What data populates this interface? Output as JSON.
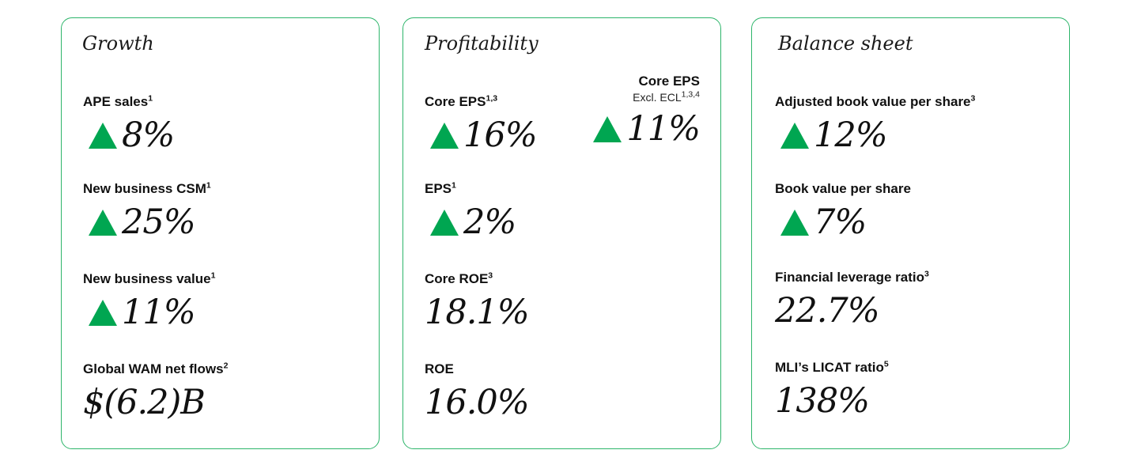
{
  "growth": {
    "title": "Growth",
    "metrics": [
      {
        "label": "APE sales",
        "sup": "1",
        "value": "8%",
        "trend": "up"
      },
      {
        "label": "New business CSM",
        "sup": "1",
        "value": "25%",
        "trend": "up"
      },
      {
        "label": "New business value",
        "sup": "1",
        "value": "11%",
        "trend": "up"
      },
      {
        "label": "Global WAM net flows",
        "sup": "2",
        "value": "$(6.2)B",
        "trend": "none"
      }
    ]
  },
  "profitability": {
    "title": "Profitability",
    "metrics": [
      {
        "label": "Core EPS",
        "sup": "1,3",
        "value": "16%",
        "trend": "up"
      },
      {
        "label": "EPS",
        "sup": "1",
        "value": "2%",
        "trend": "up"
      },
      {
        "label": "Core ROE",
        "sup": "3",
        "value": "18.1%",
        "trend": "none"
      },
      {
        "label": "ROE",
        "sup": "",
        "value": "16.0%",
        "trend": "none"
      }
    ],
    "side_metric": {
      "label": "Core EPS",
      "sub_label": "Excl. ECL",
      "sup": "1,3,4",
      "value": "11%",
      "trend": "up"
    }
  },
  "balance": {
    "title": "Balance sheet",
    "metrics": [
      {
        "label": "Adjusted book value per share",
        "sup": "3",
        "value": "12%",
        "trend": "up"
      },
      {
        "label": "Book value per share",
        "sup": "",
        "value": "7%",
        "trend": "up"
      },
      {
        "label": "Financial leverage ratio",
        "sup": "3",
        "value": "22.7%",
        "trend": "none"
      },
      {
        "label": "MLI’s LICAT ratio",
        "sup": "5",
        "value": "138%",
        "trend": "none"
      }
    ]
  },
  "colors": {
    "accent": "#00a651",
    "border": "#2db56a"
  },
  "icons": {
    "trend_up": "green-up-triangle-icon"
  }
}
